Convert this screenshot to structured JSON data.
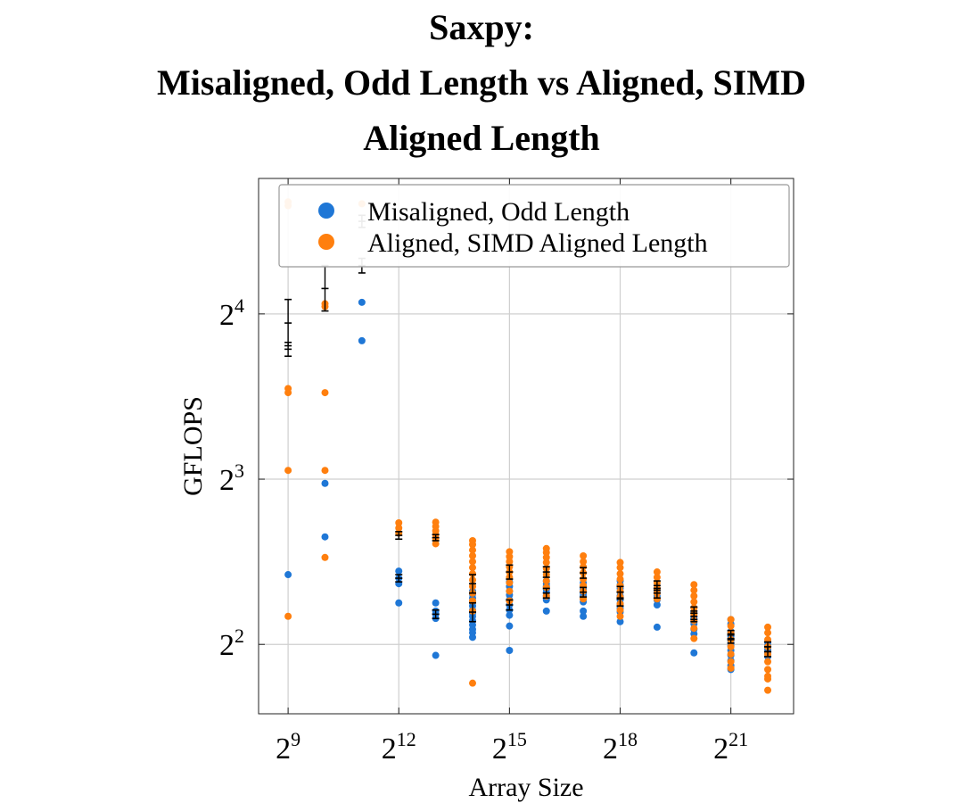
{
  "chart_data": {
    "type": "scatter",
    "title_lines": [
      "Saxpy:",
      "Misaligned, Odd Length vs Aligned, SIMD",
      "Aligned Length"
    ],
    "xlabel": "Array Size",
    "ylabel": "GFLOPS",
    "x_scale": "log2",
    "y_scale": "log2",
    "x_ticks": [
      {
        "exp": 9,
        "base": "2",
        "sup": "9"
      },
      {
        "exp": 12,
        "base": "2",
        "sup": "12"
      },
      {
        "exp": 15,
        "base": "2",
        "sup": "15"
      },
      {
        "exp": 18,
        "base": "2",
        "sup": "18"
      },
      {
        "exp": 21,
        "base": "2",
        "sup": "21"
      }
    ],
    "y_ticks": [
      {
        "exp": 2,
        "base": "2",
        "sup": "2"
      },
      {
        "exp": 3,
        "base": "2",
        "sup": "3"
      },
      {
        "exp": 4,
        "base": "2",
        "sup": "4"
      }
    ],
    "xlim_exp": [
      8.2,
      22.7
    ],
    "ylim_exp": [
      1.58,
      4.82
    ],
    "grid": true,
    "legend_position": "top-right",
    "series": [
      {
        "name": "Misaligned, Odd Length",
        "color": "#1f77d6",
        "points": [
          {
            "x_exp": 9,
            "y": [
              5.36
            ]
          },
          {
            "x_exp": 10,
            "y": [
              6.28,
              7.86
            ]
          },
          {
            "x_exp": 11,
            "y": [
              14.3,
              16.8
            ]
          },
          {
            "x_exp": 12,
            "y": [
              4.76,
              5.16,
              5.28,
              5.44
            ]
          },
          {
            "x_exp": 13,
            "y": [
              3.82,
              4.46,
              4.54,
              4.6,
              4.76
            ]
          },
          {
            "x_exp": 14,
            "y": [
              4.12,
              4.2,
              4.26,
              4.34,
              4.42,
              4.5,
              4.56,
              4.62,
              4.7,
              4.78,
              4.86,
              4.94,
              5.0
            ]
          },
          {
            "x_exp": 15,
            "y": [
              3.9,
              4.32,
              4.52,
              4.62,
              4.72,
              4.82,
              4.92,
              5.0,
              5.1,
              5.2
            ]
          },
          {
            "x_exp": 16,
            "y": [
              4.6,
              4.82,
              4.9,
              4.98,
              5.04,
              5.1,
              5.16,
              5.22
            ]
          },
          {
            "x_exp": 17,
            "y": [
              4.5,
              4.6,
              4.78,
              4.84,
              4.9,
              4.96,
              5.04,
              5.1,
              5.18
            ]
          },
          {
            "x_exp": 18,
            "y": [
              4.4,
              4.58,
              4.66,
              4.74,
              4.82,
              4.9,
              4.98,
              5.06,
              5.14,
              5.22
            ]
          },
          {
            "x_exp": 19,
            "y": [
              4.3,
              4.72,
              4.82,
              4.9,
              4.98,
              5.06
            ]
          },
          {
            "x_exp": 20,
            "y": [
              3.86,
              4.18,
              4.26,
              4.36,
              4.46,
              4.56,
              4.66
            ]
          },
          {
            "x_exp": 21,
            "y": [
              3.6,
              3.66,
              3.74,
              3.82,
              3.9,
              3.98,
              4.06,
              4.14,
              4.22,
              4.36,
              4.44
            ]
          },
          {
            "x_exp": 22,
            "y": [
              3.8,
              3.86,
              3.92,
              3.98,
              4.04
            ]
          }
        ]
      },
      {
        "name": "Aligned, SIMD Aligned Length",
        "color": "#ff7f0e",
        "points": [
          {
            "x_exp": 9,
            "y": [
              4.5,
              8.3,
              11.5,
              11.7,
              25.2,
              25.6
            ]
          },
          {
            "x_exp": 10,
            "y": [
              5.76,
              8.3,
              11.5,
              16.5,
              16.7
            ]
          },
          {
            "x_exp": 11,
            "y": [
              25.4
            ]
          },
          {
            "x_exp": 12,
            "y": [
              6.38,
              6.52,
              6.66
            ]
          },
          {
            "x_exp": 13,
            "y": [
              6.1,
              6.24,
              6.34,
              6.44,
              6.56,
              6.68
            ]
          },
          {
            "x_exp": 14,
            "y": [
              3.4,
              4.6,
              4.8,
              4.96,
              5.1,
              5.24,
              5.38,
              5.52,
              5.66,
              5.8,
              5.94,
              6.08,
              6.18
            ]
          },
          {
            "x_exp": 15,
            "y": [
              4.8,
              5.0,
              5.18,
              5.3,
              5.42,
              5.54,
              5.66,
              5.78,
              5.9
            ]
          },
          {
            "x_exp": 16,
            "y": [
              4.9,
              5.08,
              5.22,
              5.36,
              5.5,
              5.64,
              5.76,
              5.88,
              5.98
            ]
          },
          {
            "x_exp": 17,
            "y": [
              4.84,
              5.0,
              5.12,
              5.26,
              5.4,
              5.54,
              5.66,
              5.8
            ]
          },
          {
            "x_exp": 18,
            "y": [
              4.5,
              4.62,
              4.74,
              4.88,
              5.0,
              5.12,
              5.26,
              5.38,
              5.52,
              5.64
            ]
          },
          {
            "x_exp": 19,
            "y": [
              4.84,
              4.96,
              5.06,
              5.18,
              5.3,
              5.42
            ]
          },
          {
            "x_exp": 20,
            "y": [
              4.1,
              4.28,
              4.42,
              4.54,
              4.66,
              4.78,
              4.9,
              5.02,
              5.14
            ]
          },
          {
            "x_exp": 21,
            "y": [
              3.62,
              3.72,
              3.84,
              3.96,
              4.08,
              4.2,
              4.32,
              4.44
            ]
          },
          {
            "x_exp": 22,
            "y": [
              3.3,
              3.46,
              3.5,
              3.6,
              3.72,
              3.84,
              3.96,
              4.08,
              4.2,
              4.3
            ]
          }
        ]
      }
    ],
    "error_bars": [
      {
        "x_exp": 9,
        "y": 15.4,
        "low": 14.0,
        "high": 17.0
      },
      {
        "x_exp": 9,
        "y": 13.8,
        "low": 13.4,
        "high": 14.2
      },
      {
        "x_exp": 10,
        "y": 17.8,
        "low": 16.2,
        "high": 19.6
      },
      {
        "x_exp": 11,
        "y": 19.6,
        "low": 19.0,
        "high": 20.2
      },
      {
        "x_exp": 11,
        "y": 23.6,
        "low": 23.0,
        "high": 24.2
      },
      {
        "x_exp": 12,
        "y": 6.32,
        "low": 6.22,
        "high": 6.42
      },
      {
        "x_exp": 12,
        "y": 5.28,
        "low": 5.2,
        "high": 5.36
      },
      {
        "x_exp": 13,
        "y": 6.26,
        "low": 6.18,
        "high": 6.34
      },
      {
        "x_exp": 13,
        "y": 4.54,
        "low": 4.46,
        "high": 4.62
      },
      {
        "x_exp": 14,
        "y": 4.58,
        "low": 4.4,
        "high": 4.76
      },
      {
        "x_exp": 14,
        "y": 5.16,
        "low": 4.96,
        "high": 5.36
      },
      {
        "x_exp": 15,
        "y": 4.72,
        "low": 4.62,
        "high": 4.82
      },
      {
        "x_exp": 15,
        "y": 5.42,
        "low": 5.26,
        "high": 5.58
      },
      {
        "x_exp": 16,
        "y": 4.96,
        "low": 4.86,
        "high": 5.06
      },
      {
        "x_exp": 16,
        "y": 5.42,
        "low": 5.3,
        "high": 5.54
      },
      {
        "x_exp": 17,
        "y": 4.98,
        "low": 4.88,
        "high": 5.08
      },
      {
        "x_exp": 17,
        "y": 5.4,
        "low": 5.28,
        "high": 5.52
      },
      {
        "x_exp": 18,
        "y": 4.84,
        "low": 4.7,
        "high": 4.98
      },
      {
        "x_exp": 18,
        "y": 4.98,
        "low": 4.86,
        "high": 5.1
      },
      {
        "x_exp": 19,
        "y": 4.96,
        "low": 4.86,
        "high": 5.06
      },
      {
        "x_exp": 19,
        "y": 5.12,
        "low": 5.02,
        "high": 5.22
      },
      {
        "x_exp": 20,
        "y": 4.56,
        "low": 4.44,
        "high": 4.68
      },
      {
        "x_exp": 20,
        "y": 4.5,
        "low": 4.4,
        "high": 4.6
      },
      {
        "x_exp": 21,
        "y": 4.1,
        "low": 4.02,
        "high": 4.18
      },
      {
        "x_exp": 21,
        "y": 4.16,
        "low": 4.08,
        "high": 4.24
      },
      {
        "x_exp": 22,
        "y": 3.96,
        "low": 3.88,
        "high": 4.04
      },
      {
        "x_exp": 22,
        "y": 3.88,
        "low": 3.8,
        "high": 3.96
      }
    ]
  }
}
